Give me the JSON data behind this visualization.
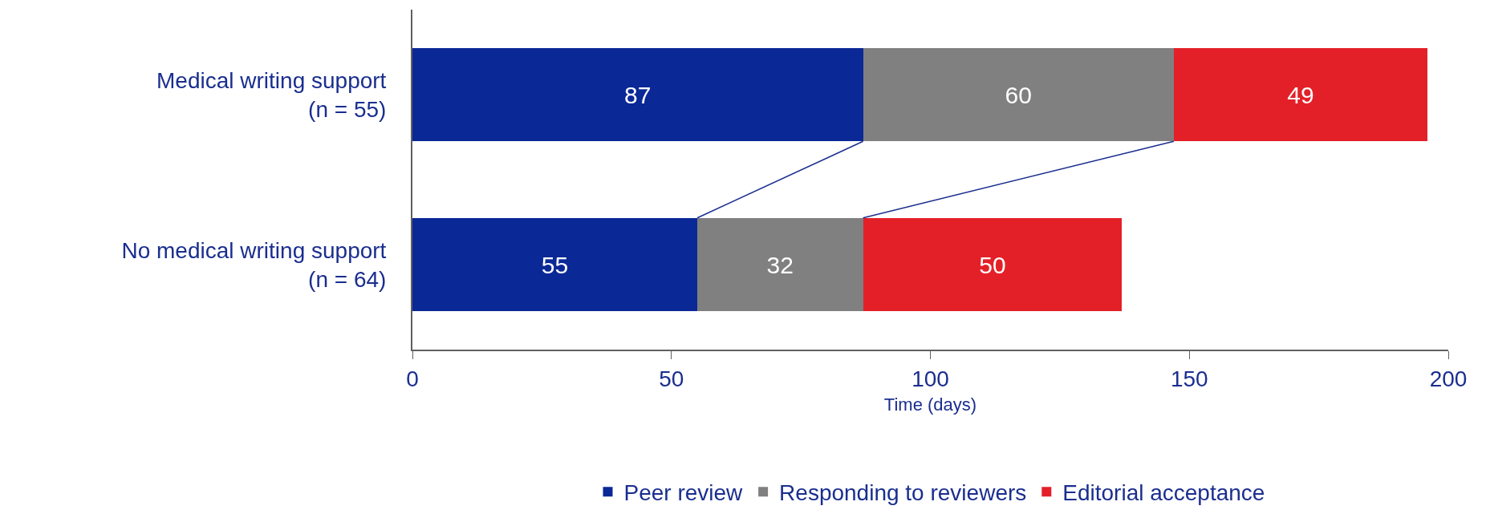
{
  "chart_data": {
    "type": "bar",
    "orientation": "horizontal",
    "stacked": true,
    "xlabel": "Time (days)",
    "categories": [
      "Medical writing support\n(n = 55)",
      "No medical writing support\n(n = 64)"
    ],
    "series": [
      {
        "name": "Peer review",
        "color": "#0a2896",
        "values": [
          87,
          55
        ]
      },
      {
        "name": "Responding to reviewers",
        "color": "#808080",
        "values": [
          60,
          32
        ]
      },
      {
        "name": "Editorial acceptance",
        "color": "#e32028",
        "values": [
          49,
          50
        ]
      }
    ],
    "xlim": [
      0,
      200
    ],
    "xticks": [
      0,
      50,
      100,
      150,
      200
    ],
    "data_labels": true,
    "legend": "bottom"
  }
}
